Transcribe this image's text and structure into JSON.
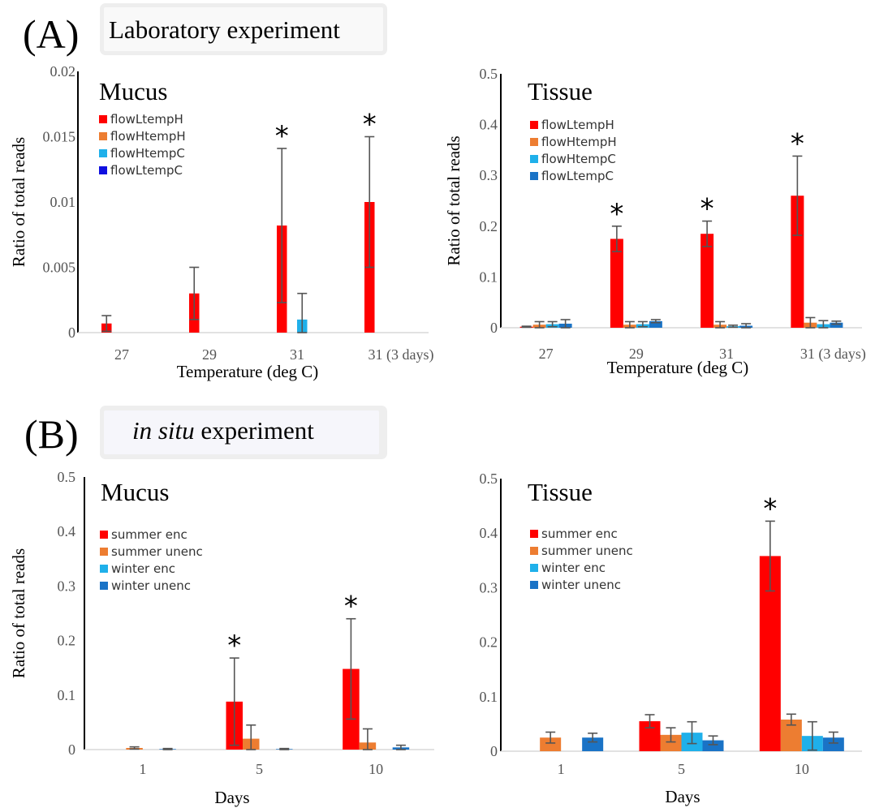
{
  "sections": [
    {
      "letter": "(A)",
      "title": "Laboratory experiment"
    },
    {
      "letter": "(B)",
      "title_italic": "in situ",
      "title_rest": " experiment"
    }
  ],
  "colors": {
    "red": "#ff0000",
    "orange": "#ed7d31",
    "lightblue": "#1fb0ea",
    "blue": "#1010e0",
    "steelblue": "#1a73c6"
  },
  "chart_data": [
    {
      "type": "bar",
      "title": "Mucus",
      "xlabel": "Temperature (deg C)",
      "ylabel": "Ratio of total reads",
      "categories": [
        "27",
        "29",
        "31",
        "31 (3 days)"
      ],
      "ylim": [
        0,
        0.02
      ],
      "yticks": [
        "0",
        "0.005",
        "0.01",
        "0.015",
        "0.02"
      ],
      "ytick_values": [
        0,
        0.005,
        0.01,
        0.015,
        0.02
      ],
      "legend_placement": "top-left",
      "series": [
        {
          "name": "flowLtempH",
          "color": "#ff0000",
          "values": [
            0.0007,
            0.003,
            0.0082,
            0.01
          ],
          "errors": [
            0.0006,
            0.002,
            0.0059,
            0.005
          ]
        },
        {
          "name": "flowHtempH",
          "color": "#ed7d31",
          "values": [
            0,
            0,
            0,
            0
          ],
          "errors": [
            0,
            0,
            0,
            0
          ]
        },
        {
          "name": "flowHtempC",
          "color": "#1fb0ea",
          "values": [
            0,
            0,
            0.001,
            0
          ],
          "errors": [
            0,
            0,
            0.002,
            0
          ]
        },
        {
          "name": "flowLtempC",
          "color": "#1010e0",
          "values": [
            0,
            0,
            0,
            0
          ],
          "errors": [
            0,
            0,
            0,
            0
          ]
        }
      ],
      "asterisks": [
        false,
        false,
        true,
        true
      ]
    },
    {
      "type": "bar",
      "title": "Tissue",
      "xlabel": "Temperature (deg C)",
      "ylabel": "Ratio of total reads",
      "categories": [
        "27",
        "29",
        "31",
        "31 (3 days)"
      ],
      "ylim": [
        0,
        0.5
      ],
      "yticks": [
        "0",
        "0.1",
        "0.2",
        "0.3",
        "0.4",
        "0.5"
      ],
      "ytick_values": [
        0,
        0.1,
        0.2,
        0.3,
        0.4,
        0.5
      ],
      "legend_placement": "top-left",
      "series": [
        {
          "name": "flowLtempH",
          "color": "#ff0000",
          "values": [
            0.002,
            0.175,
            0.185,
            0.26
          ],
          "errors": [
            0.001,
            0.025,
            0.025,
            0.078
          ]
        },
        {
          "name": "flowHtempH",
          "color": "#ed7d31",
          "values": [
            0.006,
            0.006,
            0.006,
            0.01
          ],
          "errors": [
            0.006,
            0.006,
            0.006,
            0.01
          ]
        },
        {
          "name": "flowHtempC",
          "color": "#1fb0ea",
          "values": [
            0.007,
            0.007,
            0.003,
            0.007
          ],
          "errors": [
            0.005,
            0.005,
            0.002,
            0.007
          ]
        },
        {
          "name": "flowLtempC",
          "color": "#1a73c6",
          "values": [
            0.008,
            0.013,
            0.004,
            0.01
          ],
          "errors": [
            0.008,
            0.003,
            0.004,
            0.003
          ]
        }
      ],
      "asterisks": [
        false,
        true,
        true,
        true
      ]
    },
    {
      "type": "bar",
      "title": "Mucus",
      "xlabel": "Days",
      "ylabel": "Ratio of total reads",
      "categories": [
        "1",
        "5",
        "10"
      ],
      "ylim": [
        0,
        0.5
      ],
      "yticks": [
        "0",
        "0.1",
        "0.2",
        "0.3",
        "0.4",
        "0.5"
      ],
      "ytick_values": [
        0,
        0.1,
        0.2,
        0.3,
        0.4,
        0.5
      ],
      "legend_placement": "top-left",
      "series": [
        {
          "name": "summer enc",
          "color": "#ff0000",
          "values": [
            0,
            0.088,
            0.148
          ],
          "errors": [
            0,
            0.08,
            0.092
          ]
        },
        {
          "name": "summer unenc",
          "color": "#ed7d31",
          "values": [
            0.003,
            0.02,
            0.013
          ],
          "errors": [
            0.002,
            0.025,
            0.025
          ]
        },
        {
          "name": "winter enc",
          "color": "#1fb0ea",
          "values": [
            0,
            0,
            0
          ],
          "errors": [
            0,
            0,
            0
          ]
        },
        {
          "name": "winter unenc",
          "color": "#1a73c6",
          "values": [
            0.001,
            0.001,
            0.004
          ],
          "errors": [
            0.001,
            0.001,
            0.004
          ]
        }
      ],
      "asterisks": [
        false,
        true,
        true
      ]
    },
    {
      "type": "bar",
      "title": "Tissue",
      "xlabel": "Days",
      "ylabel": "",
      "categories": [
        "1",
        "5",
        "10"
      ],
      "ylim": [
        0,
        0.5
      ],
      "yticks": [
        "0",
        "0.1",
        "0.2",
        "0.3",
        "0.4",
        "0.5"
      ],
      "ytick_values": [
        0,
        0.1,
        0.2,
        0.3,
        0.4,
        0.5
      ],
      "legend_placement": "top-left",
      "series": [
        {
          "name": "summer enc",
          "color": "#ff0000",
          "values": [
            0,
            0.055,
            0.358
          ],
          "errors": [
            0,
            0.012,
            0.064
          ]
        },
        {
          "name": "summer unenc",
          "color": "#ed7d31",
          "values": [
            0.025,
            0.03,
            0.058
          ],
          "errors": [
            0.01,
            0.013,
            0.01
          ]
        },
        {
          "name": "winter enc",
          "color": "#1fb0ea",
          "values": [
            0,
            0.034,
            0.028
          ],
          "errors": [
            0,
            0.02,
            0.026
          ]
        },
        {
          "name": "winter unenc",
          "color": "#1a73c6",
          "values": [
            0.025,
            0.02,
            0.025
          ],
          "errors": [
            0.008,
            0.008,
            0.01
          ]
        }
      ],
      "asterisks": [
        false,
        false,
        true
      ]
    }
  ]
}
